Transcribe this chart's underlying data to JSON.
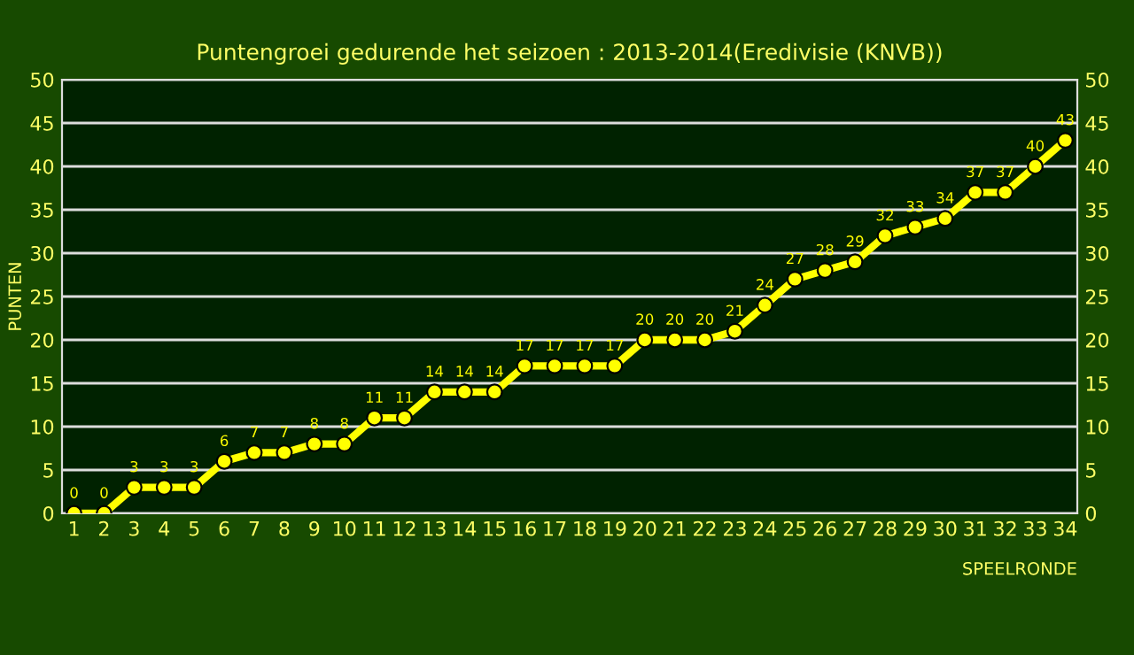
{
  "chart_data": {
    "type": "line",
    "title": "Puntengroei gedurende het seizoen : 2013-2014(Eredivisie (KNVB))",
    "xlabel": "SPEELRONDE",
    "ylabel": "PUNTEN",
    "categories": [
      "1",
      "2",
      "3",
      "4",
      "5",
      "6",
      "7",
      "8",
      "9",
      "10",
      "11",
      "12",
      "13",
      "14",
      "15",
      "16",
      "17",
      "18",
      "19",
      "20",
      "21",
      "22",
      "23",
      "24",
      "25",
      "26",
      "27",
      "28",
      "29",
      "30",
      "31",
      "32",
      "33",
      "34"
    ],
    "series": [
      {
        "color": "#ffff00",
        "values": [
          0,
          0,
          3,
          3,
          3,
          6,
          7,
          7,
          8,
          8,
          11,
          11,
          14,
          14,
          14,
          17,
          17,
          17,
          17,
          20,
          20,
          20,
          21,
          24,
          27,
          28,
          29,
          32,
          33,
          34,
          37,
          37,
          40,
          43
        ]
      }
    ],
    "ylim": [
      0,
      50
    ],
    "yticks": [
      0,
      5,
      10,
      15,
      20,
      25,
      30,
      35,
      40,
      45,
      50
    ],
    "y2lim": [
      0,
      50
    ],
    "y2ticks": [
      0,
      5,
      10,
      15,
      20,
      25,
      30,
      35,
      40,
      45,
      50
    ],
    "grid": "y",
    "marker": "circle",
    "line_style": "solid",
    "data_labels": true
  }
}
